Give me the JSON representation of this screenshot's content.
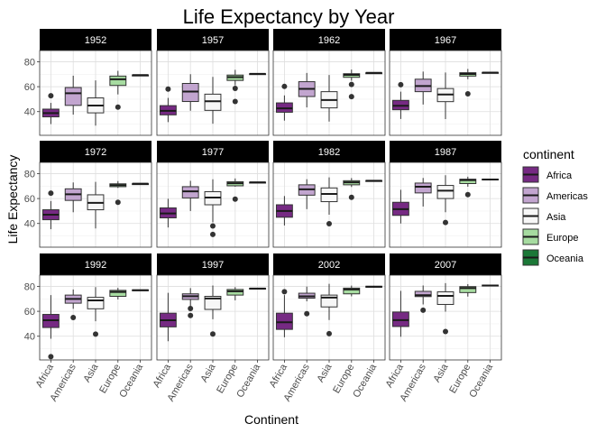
{
  "chart_data": {
    "type": "box",
    "title": "Life Expectancy by Year",
    "xlabel": "Continent",
    "ylabel": "Life Expectancy",
    "categories": [
      "Africa",
      "Americas",
      "Asia",
      "Europe",
      "Oceania"
    ],
    "y_ticks": [
      40,
      60,
      80
    ],
    "ylim": [
      21,
      89
    ],
    "legend": {
      "title": "continent",
      "placement": "right",
      "entries": [
        {
          "name": "Africa",
          "color": "#762a83"
        },
        {
          "name": "Americas",
          "color": "#c2a5cf"
        },
        {
          "name": "Asia",
          "color": "#f7f7f7"
        },
        {
          "name": "Europe",
          "color": "#a6dba0"
        },
        {
          "name": "Oceania",
          "color": "#1b7837"
        }
      ]
    },
    "panels": [
      {
        "year": "1952",
        "boxes": [
          {
            "continent": "Africa",
            "min": 30.0,
            "q1": 35.8,
            "median": 38.8,
            "q3": 42.0,
            "max": 47.0,
            "outliers": [
              52.7
            ]
          },
          {
            "continent": "Americas",
            "min": 37.6,
            "q1": 45.0,
            "median": 54.7,
            "q3": 59.3,
            "max": 68.8,
            "outliers": []
          },
          {
            "continent": "Asia",
            "min": 28.8,
            "q1": 39.0,
            "median": 44.9,
            "q3": 51.0,
            "max": 65.0,
            "outliers": []
          },
          {
            "continent": "Europe",
            "min": 53.8,
            "q1": 61.0,
            "median": 65.9,
            "q3": 68.5,
            "max": 72.7,
            "outliers": [
              43.6
            ]
          },
          {
            "continent": "Oceania",
            "min": 69.1,
            "q1": 69.2,
            "median": 69.3,
            "q3": 69.3,
            "max": 69.4,
            "outliers": []
          }
        ]
      },
      {
        "year": "1957",
        "boxes": [
          {
            "continent": "Africa",
            "min": 31.6,
            "q1": 37.4,
            "median": 40.6,
            "q3": 44.8,
            "max": 51.0,
            "outliers": [
              58.1
            ]
          },
          {
            "continent": "Americas",
            "min": 40.7,
            "q1": 48.1,
            "median": 56.1,
            "q3": 62.6,
            "max": 70.0,
            "outliers": []
          },
          {
            "continent": "Asia",
            "min": 30.3,
            "q1": 41.0,
            "median": 48.3,
            "q3": 54.0,
            "max": 67.8,
            "outliers": []
          },
          {
            "continent": "Europe",
            "min": 61.1,
            "q1": 65.0,
            "median": 67.7,
            "q3": 69.3,
            "max": 73.5,
            "outliers": [
              58.6,
              48.1
            ]
          },
          {
            "continent": "Oceania",
            "min": 70.2,
            "q1": 70.3,
            "median": 70.3,
            "q3": 70.4,
            "max": 70.5,
            "outliers": []
          }
        ]
      },
      {
        "year": "1962",
        "boxes": [
          {
            "continent": "Africa",
            "min": 32.8,
            "q1": 39.5,
            "median": 42.6,
            "q3": 47.0,
            "max": 53.0,
            "outliers": [
              60.2
            ]
          },
          {
            "continent": "Americas",
            "min": 43.4,
            "q1": 52.1,
            "median": 58.3,
            "q3": 64.0,
            "max": 71.0,
            "outliers": []
          },
          {
            "continent": "Asia",
            "min": 32.0,
            "q1": 43.0,
            "median": 49.3,
            "q3": 56.0,
            "max": 69.4,
            "outliers": []
          },
          {
            "continent": "Europe",
            "min": 64.8,
            "q1": 67.5,
            "median": 69.5,
            "q3": 70.4,
            "max": 73.7,
            "outliers": [
              61.8,
              52.0
            ]
          },
          {
            "continent": "Oceania",
            "min": 70.9,
            "q1": 71.0,
            "median": 71.1,
            "q3": 71.1,
            "max": 71.2,
            "outliers": []
          }
        ]
      },
      {
        "year": "1967",
        "boxes": [
          {
            "continent": "Africa",
            "min": 34.1,
            "q1": 41.5,
            "median": 44.7,
            "q3": 49.0,
            "max": 56.0,
            "outliers": [
              61.6
            ]
          },
          {
            "continent": "Americas",
            "min": 45.7,
            "q1": 56.0,
            "median": 60.5,
            "q3": 66.0,
            "max": 72.1,
            "outliers": []
          },
          {
            "continent": "Asia",
            "min": 34.0,
            "q1": 48.0,
            "median": 53.7,
            "q3": 58.5,
            "max": 71.4,
            "outliers": []
          },
          {
            "continent": "Europe",
            "min": 66.0,
            "q1": 68.5,
            "median": 70.2,
            "q3": 71.2,
            "max": 74.2,
            "outliers": [
              54.3
            ]
          },
          {
            "continent": "Oceania",
            "min": 71.1,
            "q1": 71.2,
            "median": 71.3,
            "q3": 71.4,
            "max": 71.5,
            "outliers": []
          }
        ]
      },
      {
        "year": "1972",
        "boxes": [
          {
            "continent": "Africa",
            "min": 35.4,
            "q1": 43.0,
            "median": 47.0,
            "q3": 51.0,
            "max": 58.0,
            "outliers": [
              64.3
            ]
          },
          {
            "continent": "Americas",
            "min": 49.0,
            "q1": 58.5,
            "median": 63.4,
            "q3": 67.8,
            "max": 72.9,
            "outliers": []
          },
          {
            "continent": "Asia",
            "min": 36.0,
            "q1": 51.0,
            "median": 56.5,
            "q3": 63.0,
            "max": 73.4,
            "outliers": []
          },
          {
            "continent": "Europe",
            "min": 68.5,
            "q1": 69.5,
            "median": 70.7,
            "q3": 71.8,
            "max": 74.0,
            "outliers": [
              57.0
            ]
          },
          {
            "continent": "Oceania",
            "min": 71.7,
            "q1": 71.8,
            "median": 71.9,
            "q3": 71.9,
            "max": 72.0,
            "outliers": []
          }
        ]
      },
      {
        "year": "1977",
        "boxes": [
          {
            "continent": "Africa",
            "min": 36.8,
            "q1": 44.5,
            "median": 48.0,
            "q3": 52.5,
            "max": 59.8,
            "outliers": []
          },
          {
            "continent": "Americas",
            "min": 50.0,
            "q1": 60.5,
            "median": 65.8,
            "q3": 69.5,
            "max": 74.2,
            "outliers": []
          },
          {
            "continent": "Asia",
            "min": 41.0,
            "q1": 55.0,
            "median": 60.8,
            "q3": 65.5,
            "max": 75.4,
            "outliers": [
              38.0,
              31.2
            ]
          },
          {
            "continent": "Europe",
            "min": 69.5,
            "q1": 70.2,
            "median": 72.3,
            "q3": 73.5,
            "max": 76.1,
            "outliers": [
              59.5
            ]
          },
          {
            "continent": "Oceania",
            "min": 72.8,
            "q1": 72.9,
            "median": 73.0,
            "q3": 73.1,
            "max": 73.2,
            "outliers": []
          }
        ]
      },
      {
        "year": "1982",
        "boxes": [
          {
            "continent": "Africa",
            "min": 38.4,
            "q1": 45.0,
            "median": 50.0,
            "q3": 55.0,
            "max": 62.0,
            "outliers": []
          },
          {
            "continent": "Americas",
            "min": 51.5,
            "q1": 62.7,
            "median": 67.4,
            "q3": 71.0,
            "max": 75.5,
            "outliers": []
          },
          {
            "continent": "Asia",
            "min": 47.0,
            "q1": 57.5,
            "median": 63.7,
            "q3": 68.5,
            "max": 77.0,
            "outliers": [
              39.8
            ]
          },
          {
            "continent": "Europe",
            "min": 69.3,
            "q1": 71.0,
            "median": 73.0,
            "q3": 74.3,
            "max": 76.4,
            "outliers": [
              61.0
            ]
          },
          {
            "continent": "Oceania",
            "min": 74.2,
            "q1": 74.3,
            "median": 74.3,
            "q3": 74.4,
            "max": 74.5,
            "outliers": []
          }
        ]
      },
      {
        "year": "1987",
        "boxes": [
          {
            "continent": "Africa",
            "min": 40.0,
            "q1": 46.5,
            "median": 51.5,
            "q3": 57.0,
            "max": 67.0,
            "outliers": []
          },
          {
            "continent": "Americas",
            "min": 53.6,
            "q1": 64.5,
            "median": 69.5,
            "q3": 72.4,
            "max": 76.5,
            "outliers": []
          },
          {
            "continent": "Asia",
            "min": 49.0,
            "q1": 60.0,
            "median": 66.3,
            "q3": 70.5,
            "max": 78.7,
            "outliers": [
              40.8
            ]
          },
          {
            "continent": "Europe",
            "min": 69.5,
            "q1": 72.0,
            "median": 74.8,
            "q3": 75.5,
            "max": 77.5,
            "outliers": [
              63.1
            ]
          },
          {
            "continent": "Oceania",
            "min": 74.8,
            "q1": 75.0,
            "median": 75.3,
            "q3": 75.6,
            "max": 75.9,
            "outliers": []
          }
        ]
      },
      {
        "year": "1992",
        "boxes": [
          {
            "continent": "Africa",
            "min": 38.0,
            "q1": 47.0,
            "median": 52.8,
            "q3": 57.5,
            "max": 73.0,
            "outliers": [
              23.6
            ]
          },
          {
            "continent": "Americas",
            "min": 62.0,
            "q1": 66.5,
            "median": 69.9,
            "q3": 73.0,
            "max": 77.5,
            "outliers": [
              55.0
            ]
          },
          {
            "continent": "Asia",
            "min": 52.0,
            "q1": 62.0,
            "median": 68.7,
            "q3": 71.2,
            "max": 79.4,
            "outliers": [
              41.7
            ]
          },
          {
            "continent": "Europe",
            "min": 69.5,
            "q1": 72.0,
            "median": 75.5,
            "q3": 76.8,
            "max": 78.8,
            "outliers": []
          },
          {
            "continent": "Oceania",
            "min": 76.3,
            "q1": 76.5,
            "median": 76.9,
            "q3": 77.2,
            "max": 77.5,
            "outliers": []
          }
        ]
      },
      {
        "year": "1997",
        "boxes": [
          {
            "continent": "Africa",
            "min": 36.0,
            "q1": 47.5,
            "median": 52.8,
            "q3": 58.5,
            "max": 74.8,
            "outliers": []
          },
          {
            "continent": "Americas",
            "min": 64.0,
            "q1": 69.5,
            "median": 72.1,
            "q3": 74.0,
            "max": 78.6,
            "outliers": [
              62.2,
              56.6
            ]
          },
          {
            "continent": "Asia",
            "min": 53.6,
            "q1": 61.5,
            "median": 70.3,
            "q3": 72.0,
            "max": 80.7,
            "outliers": [
              41.8
            ]
          },
          {
            "continent": "Europe",
            "min": 68.8,
            "q1": 73.0,
            "median": 76.1,
            "q3": 77.5,
            "max": 79.4,
            "outliers": []
          },
          {
            "continent": "Oceania",
            "min": 77.6,
            "q1": 77.8,
            "median": 78.2,
            "q3": 78.5,
            "max": 78.8,
            "outliers": []
          }
        ]
      },
      {
        "year": "2002",
        "boxes": [
          {
            "continent": "Africa",
            "min": 39.2,
            "q1": 45.5,
            "median": 51.2,
            "q3": 58.5,
            "max": 73.0,
            "outliers": [
              75.7
            ]
          },
          {
            "continent": "Americas",
            "min": 68.0,
            "q1": 70.5,
            "median": 72.0,
            "q3": 74.5,
            "max": 79.8,
            "outliers": [
              58.1
            ]
          },
          {
            "continent": "Asia",
            "min": 53.0,
            "q1": 63.5,
            "median": 71.0,
            "q3": 73.0,
            "max": 82.0,
            "outliers": [
              42.1
            ]
          },
          {
            "continent": "Europe",
            "min": 72.0,
            "q1": 74.0,
            "median": 77.5,
            "q3": 78.6,
            "max": 80.6,
            "outliers": []
          },
          {
            "continent": "Oceania",
            "min": 79.1,
            "q1": 79.3,
            "median": 79.7,
            "q3": 80.1,
            "max": 80.4,
            "outliers": []
          }
        ]
      },
      {
        "year": "2007",
        "boxes": [
          {
            "continent": "Africa",
            "min": 39.6,
            "q1": 47.8,
            "median": 52.9,
            "q3": 59.4,
            "max": 76.4,
            "outliers": []
          },
          {
            "continent": "Americas",
            "min": 65.5,
            "q1": 71.8,
            "median": 72.9,
            "q3": 76.0,
            "max": 80.7,
            "outliers": [
              60.9
            ]
          },
          {
            "continent": "Asia",
            "min": 59.7,
            "q1": 65.5,
            "median": 72.4,
            "q3": 75.6,
            "max": 82.6,
            "outliers": [
              43.8
            ]
          },
          {
            "continent": "Europe",
            "min": 71.8,
            "q1": 75.0,
            "median": 78.6,
            "q3": 79.8,
            "max": 81.8,
            "outliers": []
          },
          {
            "continent": "Oceania",
            "min": 80.2,
            "q1": 80.4,
            "median": 80.7,
            "q3": 81.0,
            "max": 81.2,
            "outliers": []
          }
        ]
      }
    ]
  }
}
